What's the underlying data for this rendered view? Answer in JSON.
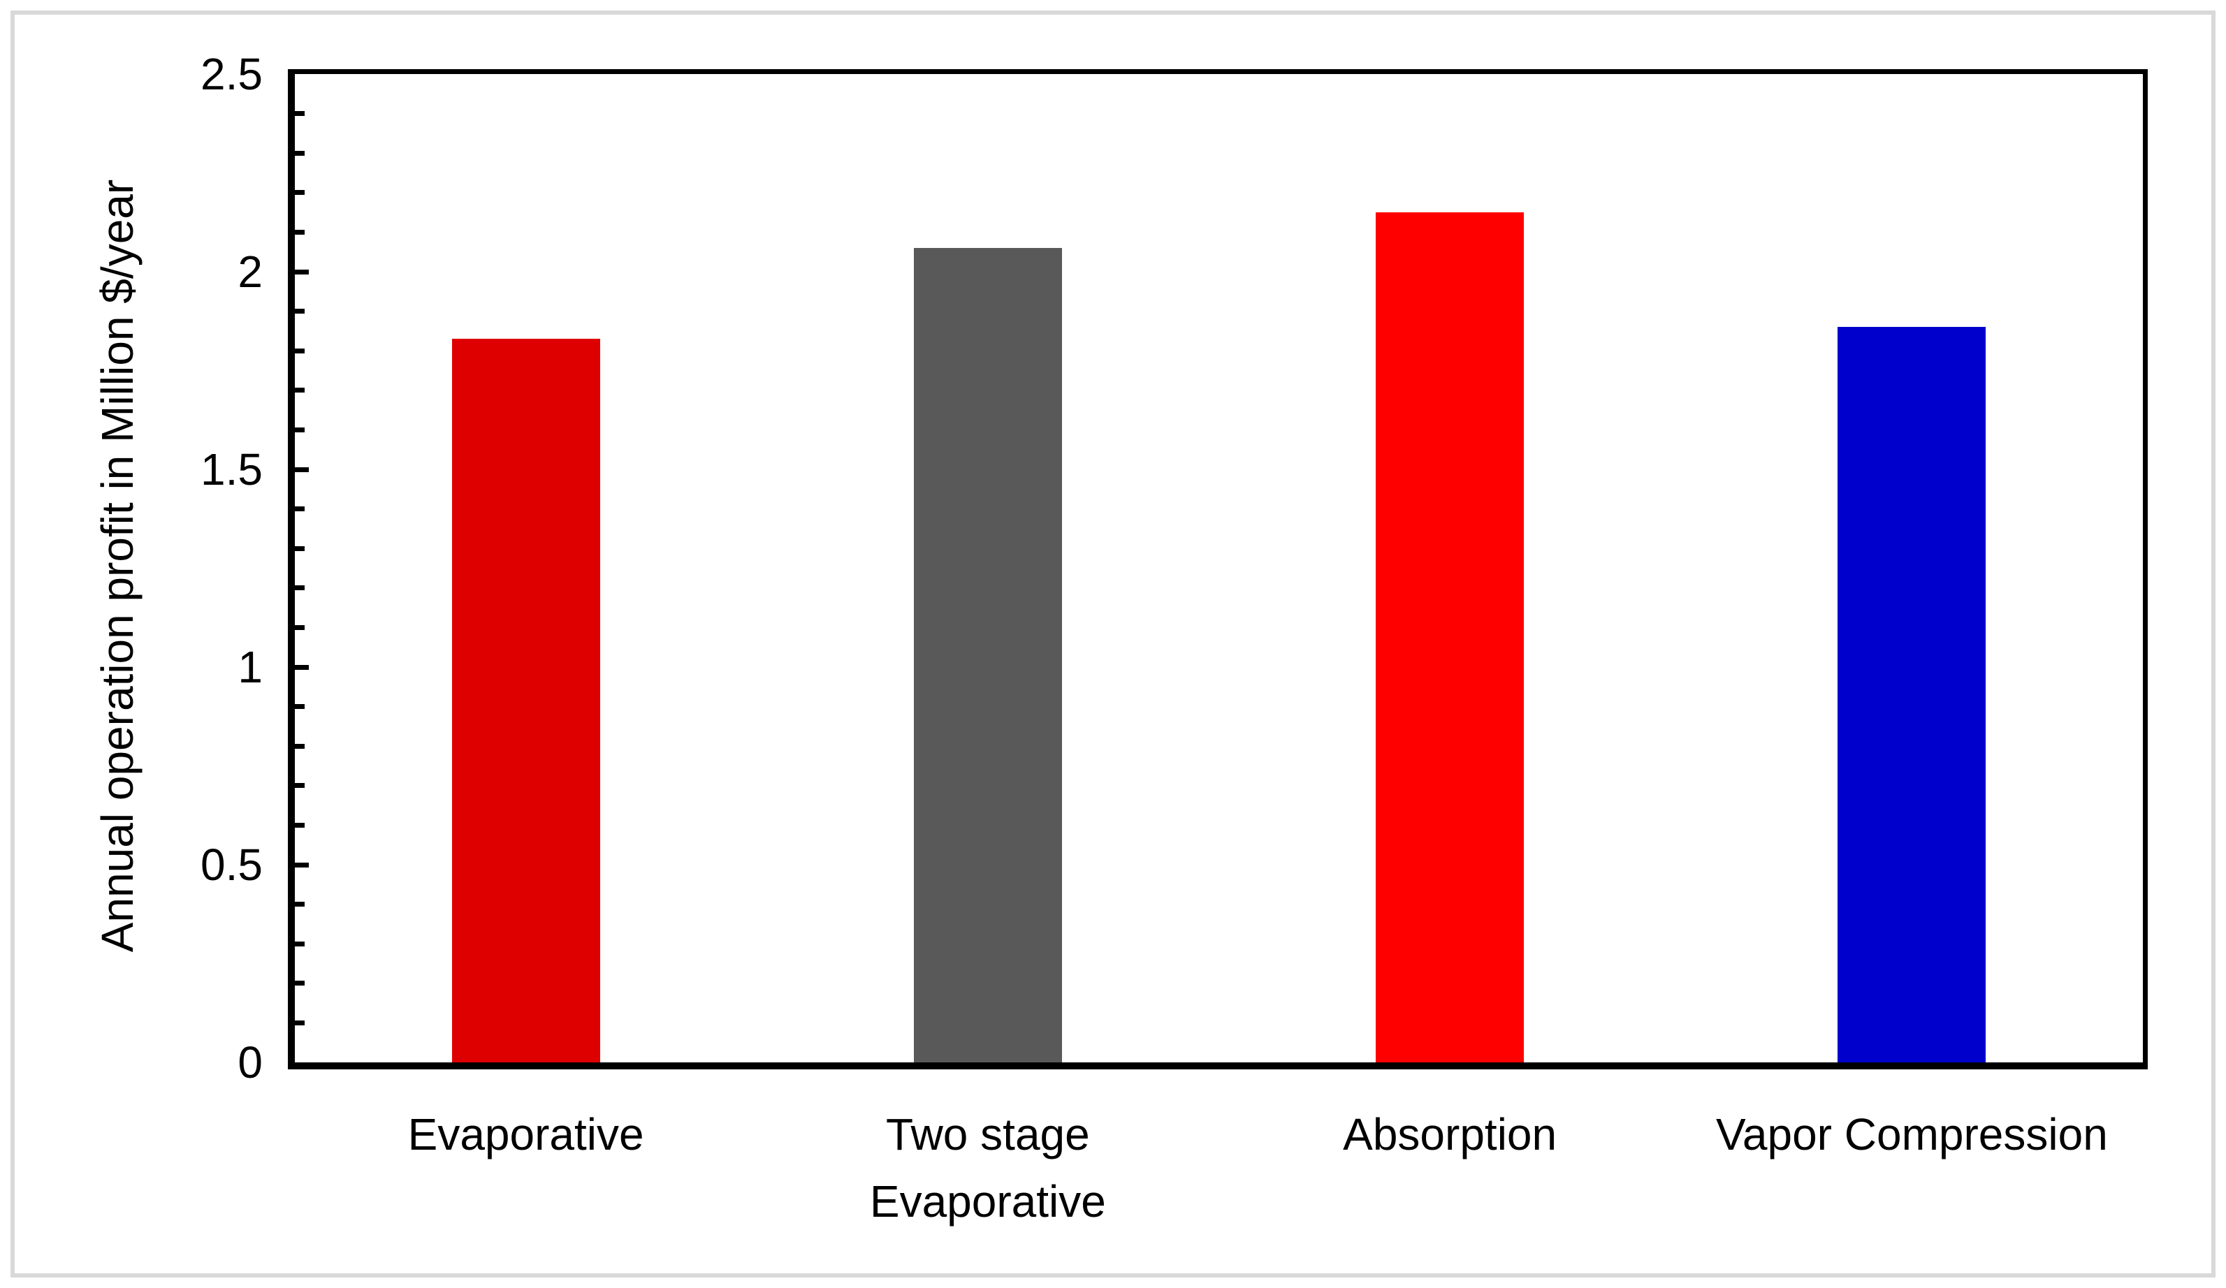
{
  "chart_data": {
    "type": "bar",
    "title": "",
    "ylabel": "Annual operation profit in Million $/year",
    "xlabel": "",
    "ylim": [
      0,
      2.5
    ],
    "ymajor_step": 0.5,
    "yminor_step": 0.1,
    "grid": "off",
    "legend": "none",
    "categories": [
      "Evaporative",
      "Two stage Evaporative",
      "Absorption",
      "Vapor Compression"
    ],
    "category_lines": [
      [
        "Evaporative"
      ],
      [
        "Two stage",
        "Evaporative"
      ],
      [
        "Absorption"
      ],
      [
        "Vapor Compression"
      ]
    ],
    "values": [
      1.83,
      2.06,
      2.15,
      1.86
    ],
    "bar_colors": [
      "#DE0000",
      "#595959",
      "#FF0000",
      "#0000CC"
    ],
    "yticks": [
      {
        "value": 0,
        "label": "0"
      },
      {
        "value": 0.5,
        "label": "0.5"
      },
      {
        "value": 1,
        "label": "1"
      },
      {
        "value": 1.5,
        "label": "1.5"
      },
      {
        "value": 2,
        "label": "2"
      },
      {
        "value": 2.5,
        "label": "2.5"
      }
    ],
    "axis_color": "#000000",
    "frame_color": "#D9D9D9",
    "background": "#FFFFFF"
  }
}
